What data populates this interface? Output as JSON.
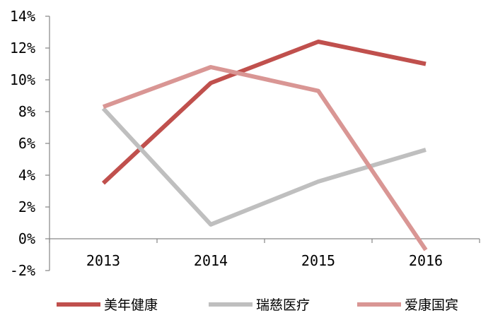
{
  "chart_data": {
    "type": "line",
    "title": "",
    "xlabel": "",
    "ylabel": "",
    "categories": [
      "2013",
      "2014",
      "2015",
      "2016"
    ],
    "y_ticks": [
      -2,
      0,
      2,
      4,
      6,
      8,
      10,
      12,
      14
    ],
    "y_tick_labels": [
      "-2%",
      "0%",
      "2%",
      "4%",
      "6%",
      "8%",
      "10%",
      "12%",
      "14%"
    ],
    "ylim": [
      -2,
      14
    ],
    "grid": false,
    "legend_position": "bottom",
    "series": [
      {
        "name": "美年健康",
        "color": "#c0504d",
        "values": [
          3.5,
          9.8,
          12.4,
          11.0
        ]
      },
      {
        "name": "瑞慈医疗",
        "color": "#bfbfbf",
        "values": [
          8.2,
          0.9,
          3.6,
          5.6
        ]
      },
      {
        "name": "爱康国宾",
        "color": "#d99694",
        "values": [
          8.3,
          10.8,
          9.3,
          -0.7
        ]
      }
    ]
  }
}
